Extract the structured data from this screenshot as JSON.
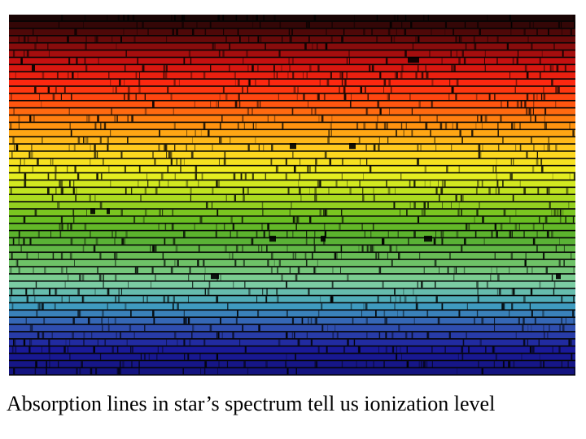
{
  "slide": {
    "caption": "Absorption lines in star’s spectrum tell us ionization level"
  },
  "spectrum": {
    "description_icon": "solar-spectrum-image",
    "band_colors": [
      "#1a0505",
      "#6a0a0a",
      "#c81010",
      "#ff2a10",
      "#ff5a10",
      "#ff9a10",
      "#ffd020",
      "#eef020",
      "#b8e020",
      "#6cc020",
      "#58b030",
      "#6cc060",
      "#80d0a0",
      "#40a0c0",
      "#3050b0",
      "#1a1a9a",
      "#141480"
    ]
  }
}
